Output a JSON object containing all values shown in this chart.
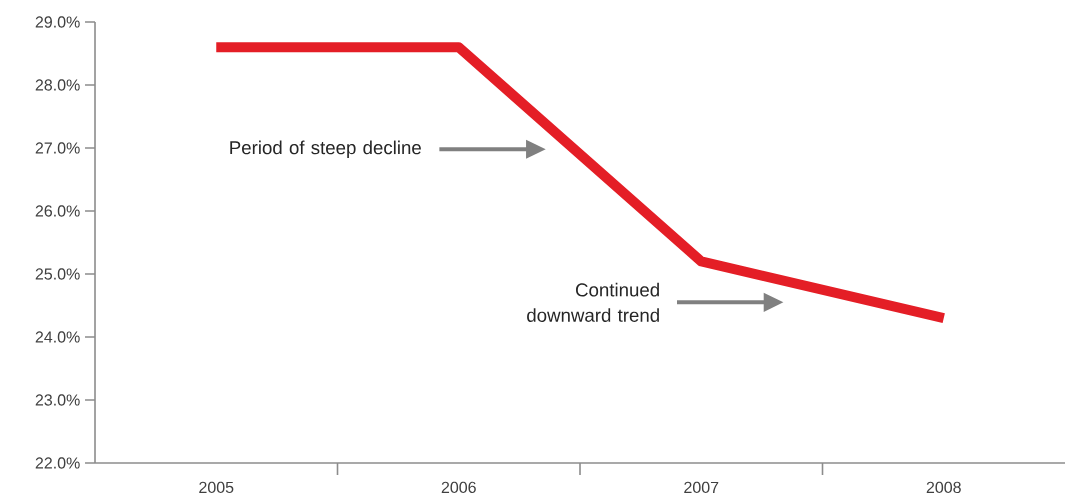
{
  "chart_data": {
    "type": "line",
    "categories": [
      "2005",
      "2006",
      "2007",
      "2008"
    ],
    "series": [
      {
        "color": "#e41e26",
        "values": [
          28.6,
          28.6,
          25.2,
          24.3
        ]
      }
    ],
    "ylim": [
      22,
      29
    ],
    "yticks": [
      {
        "value": 22,
        "label": "22.0%"
      },
      {
        "value": 23,
        "label": "23.0%"
      },
      {
        "value": 24,
        "label": "24.0%"
      },
      {
        "value": 25,
        "label": "25.0%"
      },
      {
        "value": 26,
        "label": "26.0%"
      },
      {
        "value": 27,
        "label": "27.0%"
      },
      {
        "value": 28,
        "label": "28.0%"
      },
      {
        "value": 29,
        "label": "29.0%"
      }
    ],
    "annotations": [
      "Period of steep decline",
      "Continued downward trend"
    ],
    "grid": false,
    "marker": "none",
    "line_style": "solid"
  }
}
